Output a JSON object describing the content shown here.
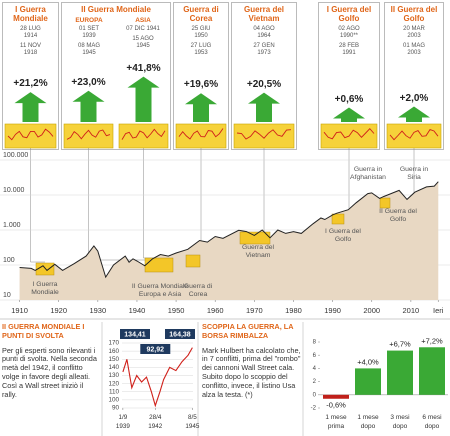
{
  "wars": [
    {
      "title": "I Guerra Mondiale",
      "start": "28 LUG 1914",
      "end": "11 NOV 1918",
      "value": 21.2,
      "value_label": "+21,2%"
    },
    {
      "title": "II Guerra Mondiale",
      "fronts": [
        {
          "name": "EUROPA",
          "start": "01 SET 1939",
          "end": "08 MAG 1945",
          "value": 23.0,
          "value_label": "+23,0%"
        },
        {
          "name": "ASIA",
          "start": "07 DIC 1941",
          "end": "15 AGO 1945",
          "value": 41.8,
          "value_label": "+41,8%"
        }
      ]
    },
    {
      "title": "Guerra di Corea",
      "start": "25 GIU 1950",
      "end": "27 LUG 1953",
      "value": 19.6,
      "value_label": "+19,6%"
    },
    {
      "title": "Guerra del Vietnam",
      "start": "04 AGO 1964",
      "end": "27 GEN 1973",
      "value": 20.5,
      "value_label": "+20,5%"
    },
    {
      "title": "I Guerra del Golfo",
      "start": "02 AGO 1990**",
      "end": "28 FEB 1991",
      "value": 0.6,
      "value_label": "+0,6%"
    },
    {
      "title": "II Guerra del Golfo",
      "start": "20 MAR 2003",
      "end": "01 MAG 2003",
      "value": 2.0,
      "value_label": "+2,0%"
    }
  ],
  "chart_data": [
    {
      "type": "line",
      "log_y": true,
      "grid": true,
      "area": true,
      "color": "#222222",
      "area_color": "#e8d8c3",
      "x": [
        1910,
        1913,
        1914,
        1916,
        1917,
        1919,
        1921,
        1924,
        1927,
        1929,
        1930,
        1932,
        1934,
        1937,
        1938,
        1939,
        1940,
        1942,
        1944,
        1946,
        1948,
        1950,
        1953,
        1956,
        1958,
        1960,
        1962,
        1966,
        1968,
        1970,
        1972,
        1974,
        1976,
        1978,
        1980,
        1982,
        1985,
        1987,
        1988,
        1990,
        1991,
        1994,
        1996,
        1999,
        2000,
        2002,
        2003,
        2007,
        2009,
        2011,
        2014,
        2016,
        2017
      ],
      "values": [
        85,
        80,
        70,
        95,
        70,
        105,
        70,
        110,
        180,
        350,
        250,
        45,
        100,
        180,
        120,
        150,
        130,
        95,
        150,
        200,
        180,
        220,
        280,
        500,
        450,
        650,
        580,
        980,
        900,
        700,
        1000,
        600,
        1000,
        800,
        900,
        800,
        1500,
        2200,
        2000,
        2700,
        3000,
        3800,
        6000,
        11000,
        11500,
        8000,
        9000,
        13500,
        7500,
        12000,
        17000,
        18000,
        24000
      ],
      "xlim": [
        1905,
        2020
      ],
      "xticks": [
        1910,
        1920,
        1930,
        1940,
        1950,
        1960,
        1970,
        1980,
        1990,
        2000,
        2010,
        {
          "value": 2017,
          "label": "Ieri"
        }
      ],
      "ylim": [
        10,
        100000
      ],
      "yticks": [
        10,
        100,
        {
          "value": 1000,
          "label": "1.000"
        },
        {
          "value": 10000,
          "label": "10.000"
        },
        {
          "value": 100000,
          "label": "100.000"
        }
      ],
      "annotations": [
        "I Guerra Mondiale",
        "II Guerra Mondiale Europa e Asia",
        "Guerra di Corea",
        "Guerra del Vietnam",
        "I Guerra del Golfo",
        "Guerra in Afghanistan",
        "II Guerra del Golfo",
        "Guerra in Siria"
      ]
    },
    {
      "type": "line",
      "grid": true,
      "color": "#d0201a",
      "x": [
        1939.67,
        1940.0,
        1940.4,
        1940.8,
        1941.2,
        1941.6,
        1942.0,
        1942.32,
        1942.7,
        1943.0,
        1943.5,
        1944.0,
        1944.5,
        1945.0,
        1945.35
      ],
      "values": [
        134.41,
        150,
        115,
        130,
        122,
        128,
        110,
        92.92,
        110,
        125,
        140,
        136,
        147,
        155,
        164.38
      ],
      "value_labels": [
        "134,41",
        null,
        null,
        null,
        null,
        null,
        null,
        "92,92",
        null,
        null,
        null,
        null,
        null,
        null,
        "164,38"
      ],
      "xlim": [
        1939.6,
        1945.4
      ],
      "xticks": [
        {
          "value": 1939.67,
          "label": "1/9 1939"
        },
        {
          "value": 1942.32,
          "label": "28/4 1942"
        },
        {
          "value": 1945.35,
          "label": "8/5 1945"
        }
      ],
      "ylim": [
        90,
        170
      ],
      "yticks": [
        90,
        100,
        110,
        120,
        130,
        140,
        150,
        160,
        170
      ]
    },
    {
      "type": "bar",
      "categories": [
        "1 mese prima",
        "1 mese dopo",
        "3 mesi dopo",
        "6 mesi dopo"
      ],
      "values": [
        -0.6,
        4.0,
        6.7,
        7.2
      ],
      "value_labels": [
        "-0,6%",
        "+4,0%",
        "+6,7%",
        "+7,2%"
      ],
      "colors": [
        "#c0201a",
        "#3aa935",
        "#3aa935",
        "#3aa935"
      ],
      "ylim": [
        -2,
        8
      ],
      "yticks": [
        -2,
        0,
        2,
        4,
        6,
        8
      ]
    }
  ],
  "notes": [
    {
      "title": "II GUERRA MONDIALE I PUNTI DI SVOLTA",
      "text": "Per gli esperti sono rilevanti i punti di svolta. Nella seconda metà del 1942, il conflitto volge in favore degli alleati. Così a Wall street iniziò il rally."
    },
    {
      "title": "SCOPPIA LA GUERRA, LA BORSA RIMBALZA",
      "text": "Mark Hulbert ha calcolato che, in 7 conflitti, prima del \"rombo\" dei cannoni Wall Street cala. Subito dopo lo scoppio del conflitto, invece, il listino Usa alza la testa. (*)"
    }
  ]
}
